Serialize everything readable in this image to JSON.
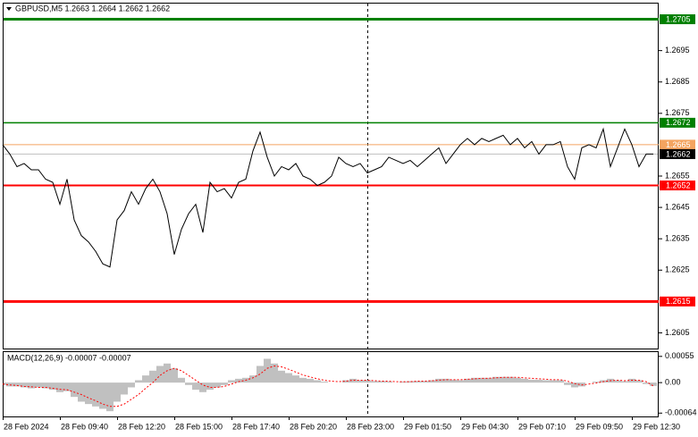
{
  "chart_data": [
    {
      "type": "line",
      "title": "GBPUSD,M5  1.2663 1.2664 1.2662 1.2662",
      "color": "#000000",
      "categories": [
        "28 Feb 2024",
        null,
        null,
        null,
        null,
        null,
        null,
        null,
        "28 Feb 09:40",
        null,
        null,
        null,
        null,
        null,
        null,
        null,
        "28 Feb 12:20",
        null,
        null,
        null,
        null,
        null,
        null,
        null,
        "28 Feb 15:00",
        null,
        null,
        null,
        null,
        null,
        null,
        null,
        "28 Feb 17:40",
        null,
        null,
        null,
        null,
        null,
        null,
        null,
        "28 Feb 20:20",
        null,
        null,
        null,
        null,
        null,
        null,
        null,
        "28 Feb 23:00",
        null,
        null,
        null,
        null,
        null,
        null,
        null,
        "29 Feb 01:50",
        null,
        null,
        null,
        null,
        null,
        null,
        null,
        "29 Feb 04:30",
        null,
        null,
        null,
        null,
        null,
        null,
        null,
        "29 Feb 07:10",
        null,
        null,
        null,
        null,
        null,
        null,
        null,
        "29 Feb 09:50",
        null,
        null,
        null,
        null,
        null,
        null,
        null,
        "29 Feb 12:30",
        null,
        null,
        null
      ],
      "values": [
        1.2665,
        1.2662,
        1.2658,
        1.2659,
        1.2657,
        1.2657,
        1.2654,
        1.2653,
        1.2646,
        1.2654,
        1.2641,
        1.2636,
        1.2634,
        1.2631,
        1.2627,
        1.2626,
        1.2641,
        1.2644,
        1.265,
        1.2646,
        1.2651,
        1.2654,
        1.265,
        1.2643,
        1.263,
        1.2638,
        1.2643,
        1.2646,
        1.2637,
        1.2653,
        1.265,
        1.2651,
        1.2648,
        1.2653,
        1.2654,
        1.2663,
        1.2669,
        1.2661,
        1.2655,
        1.2658,
        1.2657,
        1.2659,
        1.2655,
        1.2654,
        1.2652,
        1.2653,
        1.2655,
        1.2661,
        1.2659,
        1.2658,
        1.2659,
        1.2656,
        1.2657,
        1.2658,
        1.2661,
        1.266,
        1.2659,
        1.266,
        1.2658,
        1.266,
        1.2662,
        1.2664,
        1.2659,
        1.2662,
        1.2665,
        1.2667,
        1.2665,
        1.2667,
        1.2666,
        1.2667,
        1.2668,
        1.2665,
        1.2667,
        1.2664,
        1.2666,
        1.2662,
        1.2665,
        1.2665,
        1.2666,
        1.2658,
        1.2654,
        1.2664,
        1.2665,
        1.2664,
        1.267,
        1.2658,
        1.2664,
        1.267,
        1.2665,
        1.2658,
        1.2662,
        1.2662
      ],
      "ylim": [
        1.26,
        1.271
      ],
      "yticks": [
        1.2695,
        1.2685,
        1.2675,
        1.2655,
        1.2645,
        1.2635,
        1.2625,
        1.2605
      ],
      "levels": [
        {
          "value": 1.2705,
          "color": "#008000"
        },
        {
          "value": 1.2672,
          "color": "#008000"
        },
        {
          "value": 1.2665,
          "color": "#f4a460"
        },
        {
          "value": 1.2662,
          "color": "#000000"
        },
        {
          "value": 1.2652,
          "color": "#ff0000"
        },
        {
          "value": 1.2615,
          "color": "#ff0000"
        }
      ]
    },
    {
      "type": "bar",
      "title": "MACD(12,26,9) -0.00007 -0.00007",
      "ylim": [
        -0.00071,
        0.00064
      ],
      "yticks": [
        0.00055,
        {
          "value": 0,
          "label": "0.00"
        },
        -0.00064
      ],
      "series": [
        {
          "type": "bar",
          "color": "#c0c0c0",
          "values": [
            -5e-05,
            -8e-05,
            -8e-05,
            -0.0001,
            -0.00012,
            -0.0001,
            -0.00012,
            -0.00015,
            -0.0002,
            -0.00018,
            -0.0003,
            -0.0004,
            -0.00045,
            -0.0005,
            -0.00055,
            -0.0006,
            -0.0004,
            -0.00025,
            -0.0001,
            5e-05,
            0.00015,
            0.00025,
            0.00035,
            0.0004,
            0.0003,
            0.0001,
            -5e-05,
            -0.00015,
            -0.0002,
            -0.00015,
            -0.0001,
            -5e-05,
            5e-05,
            8e-05,
            0.0001,
            0.00015,
            0.00035,
            0.0005,
            0.0004,
            0.00025,
            0.0002,
            0.00015,
            0.0001,
            8e-05,
            5e-05,
            2e-05,
            0,
            0,
            5e-05,
            8e-05,
            5e-05,
            5e-05,
            3e-05,
            3e-05,
            2e-05,
            0,
            2e-05,
            3e-05,
            3e-05,
            3e-05,
            5e-05,
            8e-05,
            8e-05,
            6e-05,
            5e-05,
            8e-05,
            0.0001,
            0.0001,
            0.0001,
            0.00012,
            0.00012,
            0.00012,
            0.0001,
            8e-05,
            6e-05,
            6e-05,
            5e-05,
            5e-05,
            5e-05,
            -5e-05,
            -0.0001,
            -8e-05,
            0,
            2e-05,
            5e-05,
            8e-05,
            5e-05,
            3e-05,
            8e-05,
            5e-05,
            -3e-05,
            -7e-05
          ]
        },
        {
          "type": "line",
          "color": "#ff0000",
          "values": [
            -3e-05,
            -5e-05,
            -6e-05,
            -8e-05,
            -9e-05,
            -0.0001,
            -0.0001,
            -0.00012,
            -0.00014,
            -0.00015,
            -0.0002,
            -0.00025,
            -0.00032,
            -0.00038,
            -0.00045,
            -0.0005,
            -0.0005,
            -0.00045,
            -0.00035,
            -0.00025,
            -0.00012,
            0,
            0.00015,
            0.00025,
            0.0003,
            0.00025,
            0.00015,
            5e-05,
            -5e-05,
            -0.0001,
            -0.0001,
            -8e-05,
            -3e-05,
            2e-05,
            5e-05,
            0.0001,
            0.00018,
            0.0003,
            0.00035,
            0.00033,
            0.00028,
            0.00022,
            0.00016,
            0.00012,
            8e-05,
            5e-05,
            3e-05,
            2e-05,
            3e-05,
            5e-05,
            5e-05,
            5e-05,
            4e-05,
            3e-05,
            3e-05,
            2e-05,
            2e-05,
            2e-05,
            3e-05,
            3e-05,
            4e-05,
            5e-05,
            6e-05,
            6e-05,
            6e-05,
            7e-05,
            8e-05,
            9e-05,
            9e-05,
            0.0001,
            0.00011,
            0.00011,
            0.00011,
            0.0001,
            9e-05,
            8e-05,
            7e-05,
            6e-05,
            6e-05,
            3e-05,
            -2e-05,
            -5e-05,
            -3e-05,
            -1e-05,
            2e-05,
            4e-05,
            5e-05,
            4e-05,
            5e-05,
            5e-05,
            2e-05,
            -7e-05
          ]
        }
      ]
    }
  ]
}
